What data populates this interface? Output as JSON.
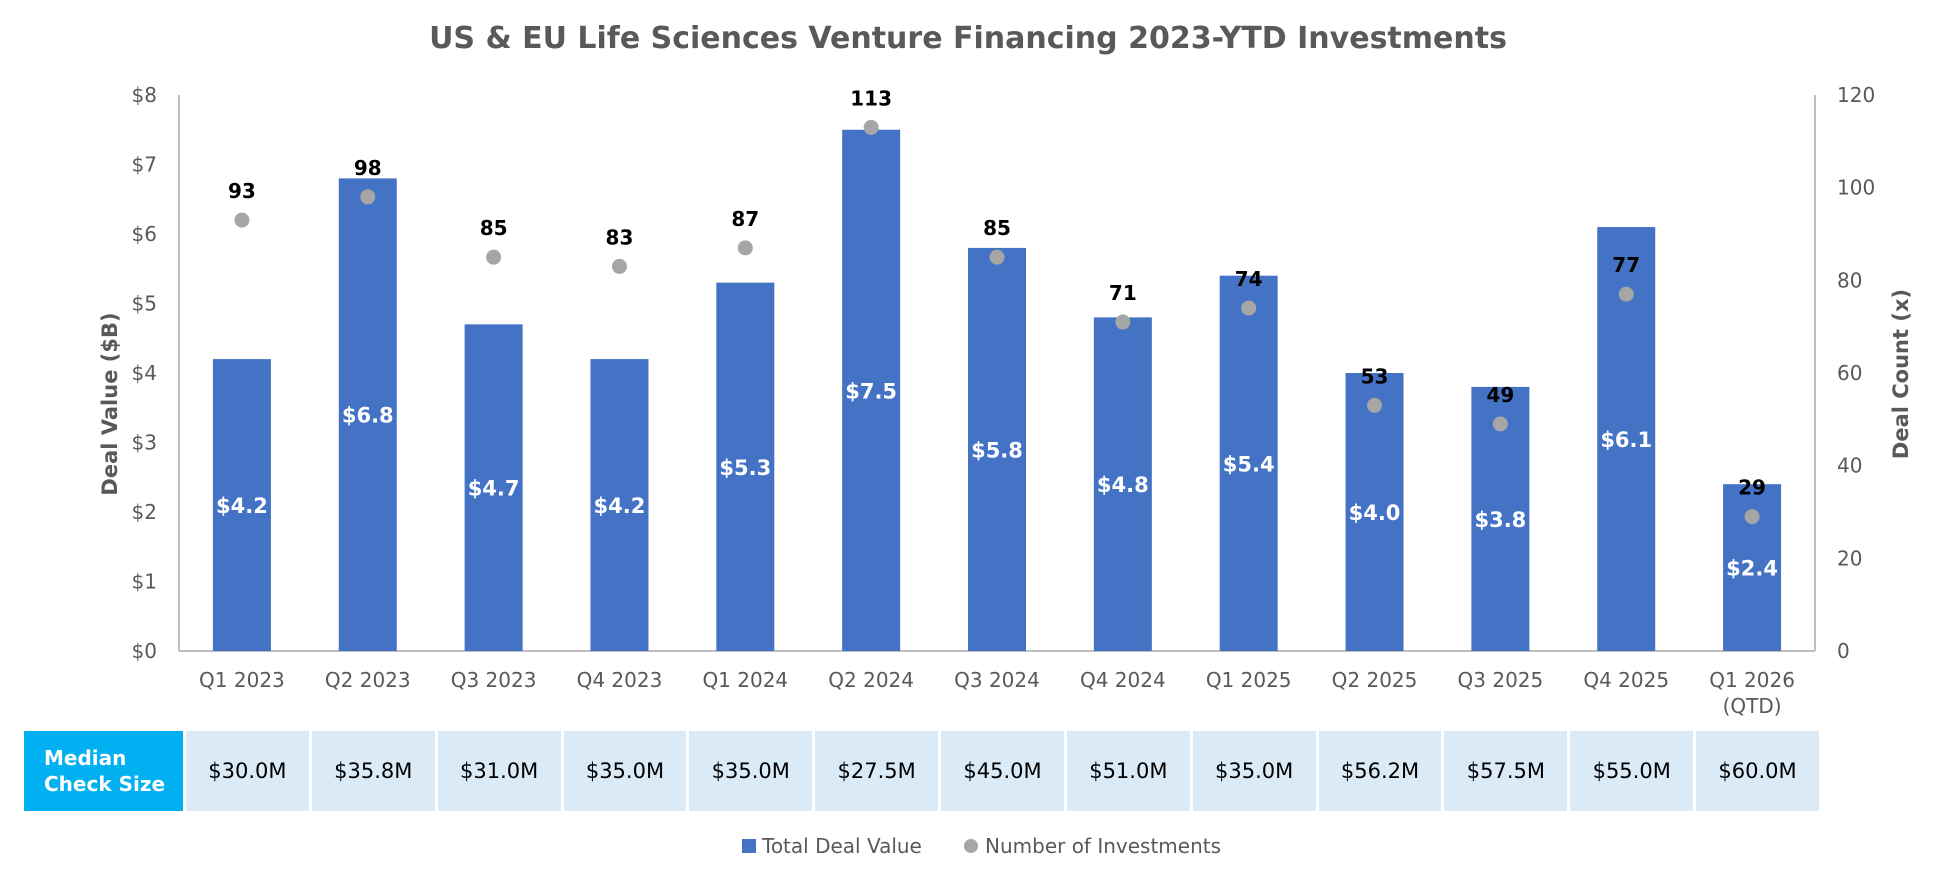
{
  "chart_data": {
    "type": "bar",
    "title": "US & EU Life Sciences Venture Financing 2023-YTD Investments",
    "categories": [
      "Q1 2023",
      "Q2 2023",
      "Q3 2023",
      "Q4 2023",
      "Q1 2024",
      "Q2 2024",
      "Q3 2024",
      "Q4 2024",
      "Q1 2025",
      "Q2 2025",
      "Q3 2025",
      "Q4 2025",
      "Q1 2026\n(QTD)"
    ],
    "series": [
      {
        "name": "Total Deal Value",
        "type": "bar",
        "axis": "left",
        "color": "#4472c4",
        "values": [
          4.2,
          6.8,
          4.7,
          4.2,
          5.3,
          7.5,
          5.8,
          4.8,
          5.4,
          4.0,
          3.8,
          6.1,
          2.4
        ],
        "labels": [
          "$4.2",
          "$6.8",
          "$4.7",
          "$4.2",
          "$5.3",
          "$7.5",
          "$5.8",
          "$4.8",
          "$5.4",
          "$4.0",
          "$3.8",
          "$6.1",
          "$2.4"
        ]
      },
      {
        "name": "Number of Investments",
        "type": "scatter",
        "axis": "right",
        "color": "#a6a6a6",
        "values": [
          93,
          98,
          85,
          83,
          87,
          113,
          85,
          71,
          74,
          53,
          49,
          77,
          29
        ],
        "labels": [
          "93",
          "98",
          "85",
          "83",
          "87",
          "113",
          "85",
          "71",
          "74",
          "53",
          "49",
          "77",
          "29"
        ]
      }
    ],
    "ylabel": "Deal Value ($B)",
    "y2label": "Deal Count (x)",
    "ylim": [
      0,
      8
    ],
    "y2lim": [
      0,
      120
    ],
    "yticks": [
      "$0",
      "$1",
      "$2",
      "$3",
      "$4",
      "$5",
      "$6",
      "$7",
      "$8"
    ],
    "y2ticks": [
      "0",
      "20",
      "40",
      "60",
      "80",
      "100",
      "120"
    ],
    "grid": false,
    "legend_position": "bottom"
  },
  "median_table": {
    "header": "Median\nCheck Size",
    "values": [
      "$30.0M",
      "$35.8M",
      "$31.0M",
      "$35.0M",
      "$35.0M",
      "$27.5M",
      "$45.0M",
      "$51.0M",
      "$35.0M",
      "$56.2M",
      "$57.5M",
      "$55.0M",
      "$60.0M"
    ]
  },
  "legend": {
    "bar_label": "Total Deal Value",
    "dot_label": "Number of Investments"
  }
}
